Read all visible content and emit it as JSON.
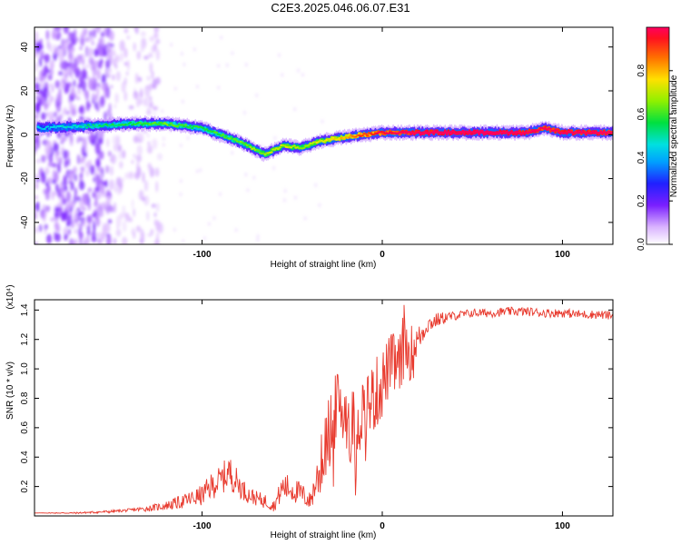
{
  "title": "C2E3.2025.046.06.07.E31",
  "chart_data": [
    {
      "type": "heatmap",
      "xlabel": "Height of straight line (km)",
      "ylabel": "Frequency (Hz)",
      "xlim": [
        -193,
        128
      ],
      "ylim": [
        -50,
        49
      ],
      "xticks": [
        -100,
        0,
        100
      ],
      "yticks": [
        -40,
        -20,
        0,
        20,
        40
      ],
      "colorbar": {
        "label": "Normalized spectral amplitude",
        "range": [
          0,
          1
        ],
        "ticks": [
          "0.0",
          "0.2",
          "0.4",
          "0.6",
          "0.8"
        ]
      },
      "ridge": {
        "description_points_x": [
          -190,
          -160,
          -140,
          -120,
          -100,
          -80,
          -65,
          -55,
          -45,
          -35,
          -20,
          -10,
          0,
          20,
          50,
          80,
          90,
          100,
          128
        ],
        "center_freq": [
          3,
          4,
          5,
          5,
          3,
          -3,
          -9,
          -5,
          -6,
          -3,
          -1,
          0,
          1,
          1,
          1,
          1,
          3,
          1,
          1
        ],
        "amplitude": [
          0.3,
          0.4,
          0.45,
          0.5,
          0.45,
          0.5,
          0.55,
          0.6,
          0.55,
          0.6,
          0.7,
          0.8,
          0.85,
          0.95,
          1.0,
          0.95,
          0.9,
          0.95,
          0.9
        ]
      }
    },
    {
      "type": "line",
      "xlabel": "Height of straight line (km)",
      "ylabel": "SNR (10 * v/v)",
      "yscale_label": "(x10⁴)",
      "xlim": [
        -193,
        128
      ],
      "ylim": [
        0,
        1.47
      ],
      "xticks": [
        -100,
        0,
        100
      ],
      "yticks": [
        "0.2",
        "0.4",
        "0.6",
        "0.8",
        "1.0",
        "1.2",
        "1.4"
      ],
      "ytick_values": [
        0.2,
        0.4,
        0.6,
        0.8,
        1.0,
        1.2,
        1.4
      ],
      "series": [
        {
          "color": "#e83a2e",
          "x": [
            -193,
            -170,
            -150,
            -140,
            -130,
            -120,
            -110,
            -100,
            -95,
            -90,
            -85,
            -80,
            -75,
            -70,
            -65,
            -60,
            -55,
            -50,
            -45,
            -40,
            -35,
            -30,
            -25,
            -20,
            -15,
            -10,
            -5,
            0,
            5,
            10,
            12,
            15,
            20,
            25,
            30,
            35,
            40,
            50,
            60,
            70,
            80,
            90,
            100,
            110,
            120,
            128
          ],
          "y": [
            0.02,
            0.02,
            0.03,
            0.04,
            0.05,
            0.07,
            0.1,
            0.14,
            0.2,
            0.24,
            0.3,
            0.22,
            0.15,
            0.12,
            0.1,
            0.07,
            0.2,
            0.18,
            0.15,
            0.1,
            0.3,
            0.55,
            0.75,
            0.7,
            0.6,
            0.75,
            0.8,
            0.9,
            1.05,
            1.0,
            1.2,
            1.1,
            1.2,
            1.3,
            1.33,
            1.35,
            1.36,
            1.38,
            1.38,
            1.39,
            1.39,
            1.38,
            1.38,
            1.37,
            1.37,
            1.36
          ],
          "noise": [
            0.0,
            0.005,
            0.01,
            0.01,
            0.02,
            0.03,
            0.05,
            0.07,
            0.09,
            0.1,
            0.12,
            0.09,
            0.06,
            0.05,
            0.05,
            0.04,
            0.1,
            0.09,
            0.08,
            0.06,
            0.18,
            0.25,
            0.25,
            0.25,
            0.25,
            0.25,
            0.25,
            0.25,
            0.2,
            0.25,
            0.25,
            0.2,
            0.1,
            0.06,
            0.05,
            0.04,
            0.03,
            0.03,
            0.03,
            0.03,
            0.03,
            0.03,
            0.03,
            0.03,
            0.03,
            0.03
          ]
        }
      ]
    }
  ]
}
